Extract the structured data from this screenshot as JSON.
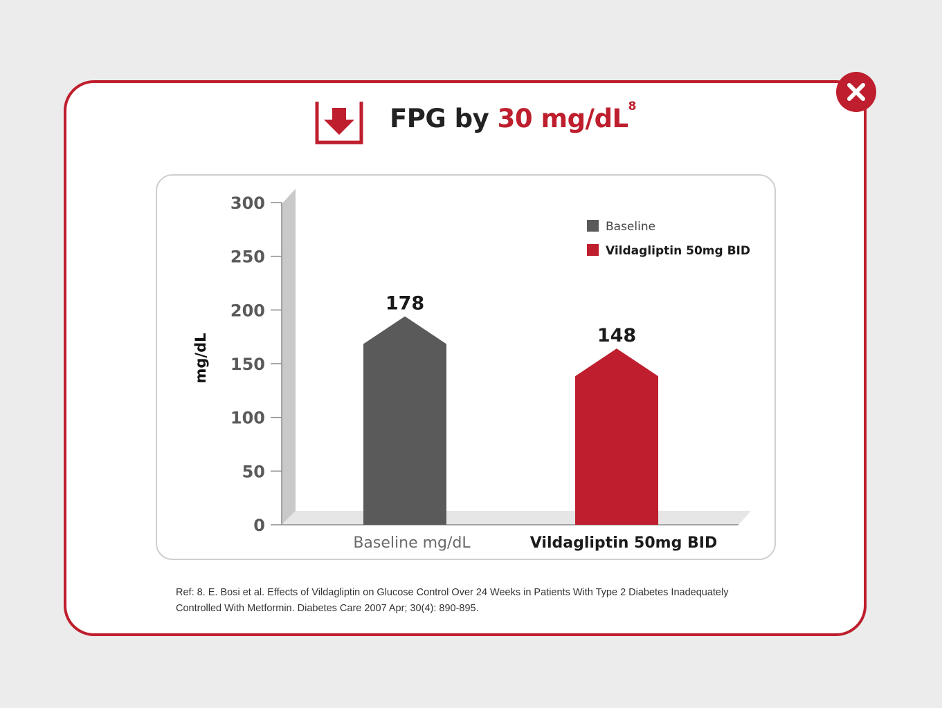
{
  "modal": {
    "title_prefix": "FPG by ",
    "title_accent": "30 mg/dL",
    "title_sup": "8",
    "close_icon": "close-icon",
    "title_icon": "down-arrow-box-icon",
    "reference": "Ref: 8. E. Bosi et al. Effects of Vildagliptin on Glucose Control Over 24 Weeks in Patients With Type 2 Diabetes Inadequately Controlled With Metformin. Diabetes Care 2007 Apr; 30(4): 890-895."
  },
  "colors": {
    "accent": "#be1e2d",
    "baseline_bar": "#5a5a5a",
    "treatment_bar": "#be1e2d"
  },
  "chart_data": {
    "type": "bar",
    "ylabel": "mg/dL",
    "ylim": [
      0,
      300
    ],
    "yticks": [
      0,
      50,
      100,
      150,
      200,
      250,
      300
    ],
    "categories": [
      "Baseline mg/dL",
      "Vildagliptin 50mg BID"
    ],
    "values": [
      178,
      148
    ],
    "data_labels": [
      "178",
      "148"
    ],
    "series_colors": [
      "#5a5a5a",
      "#be1e2d"
    ],
    "legend": [
      {
        "label": "Baseline",
        "color": "#5a5a5a"
      },
      {
        "label": "Vildagliptin 50mg BID",
        "color": "#be1e2d"
      }
    ],
    "legend_position": "top-right",
    "grid": false
  }
}
